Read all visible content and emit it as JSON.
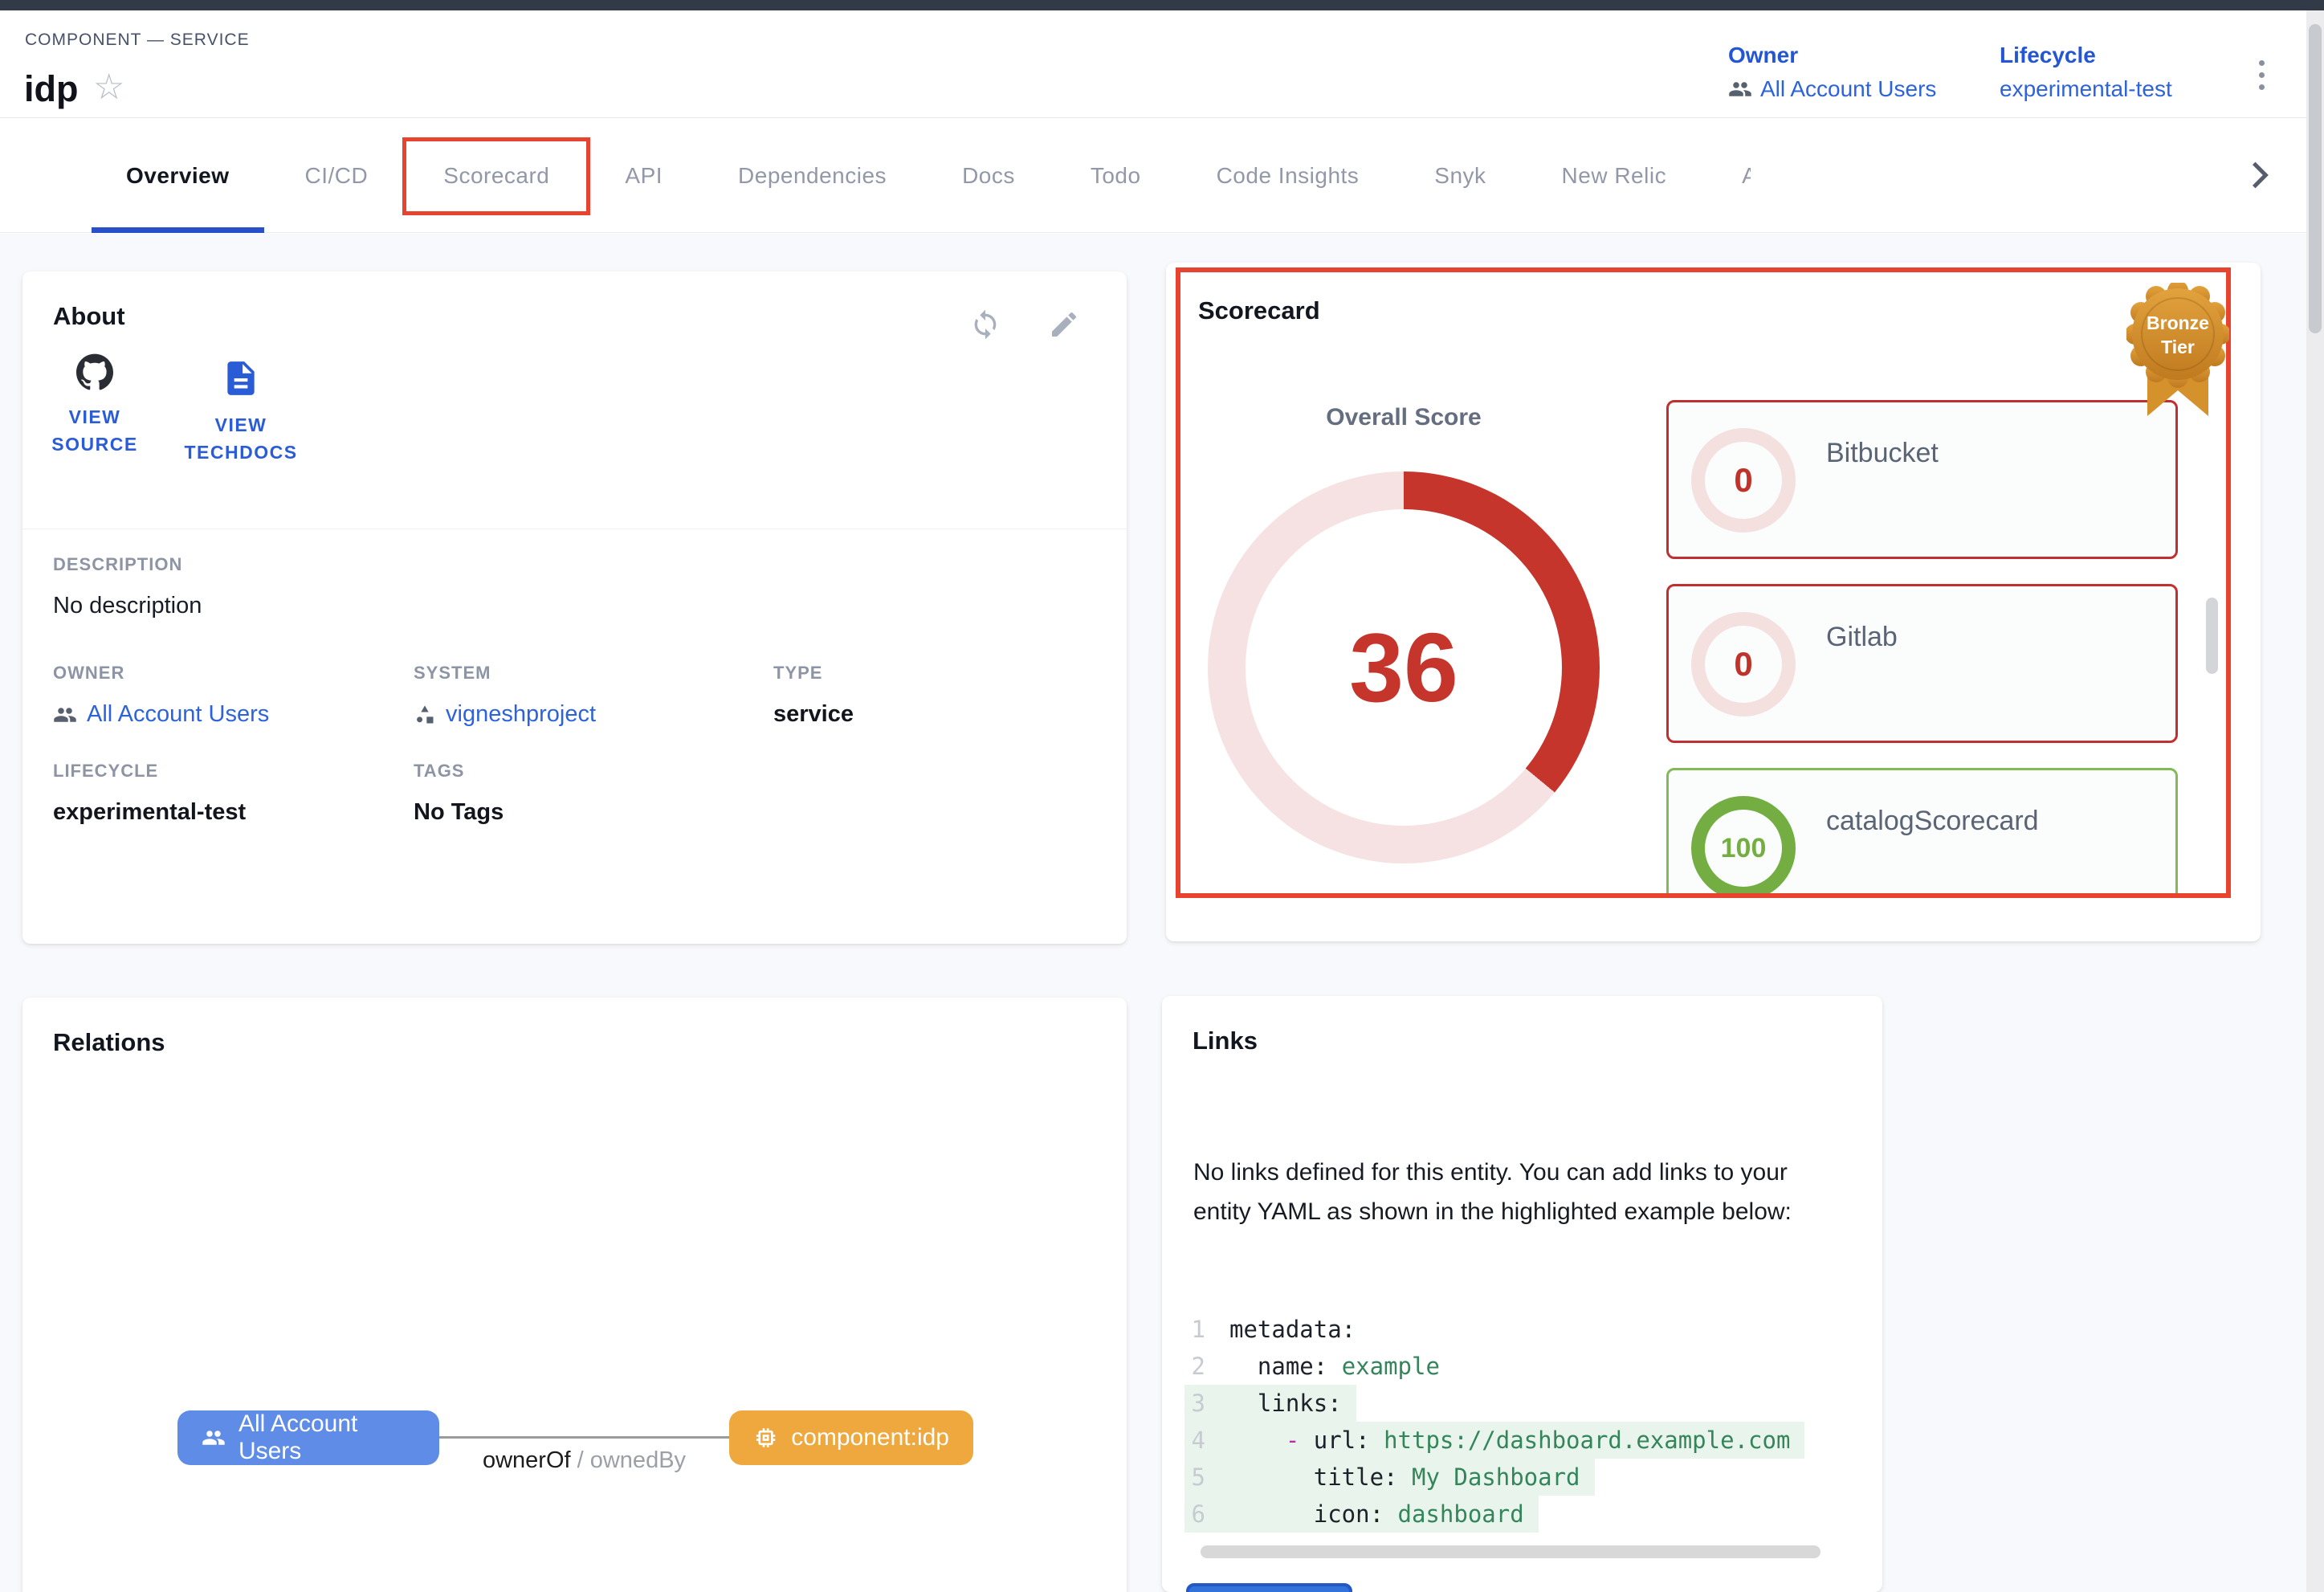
{
  "header": {
    "breadcrumb": "COMPONENT — SERVICE",
    "title": "idp",
    "meta": {
      "owner_label": "Owner",
      "owner_value": "All Account Users",
      "lifecycle_label": "Lifecycle",
      "lifecycle_value": "experimental-test"
    }
  },
  "tabs": {
    "items": [
      {
        "label": "Overview",
        "active": true
      },
      {
        "label": "CI/CD"
      },
      {
        "label": "Scorecard",
        "boxed": true
      },
      {
        "label": "API"
      },
      {
        "label": "Dependencies"
      },
      {
        "label": "Docs"
      },
      {
        "label": "Todo"
      },
      {
        "label": "Code Insights"
      },
      {
        "label": "Snyk"
      },
      {
        "label": "New Relic"
      },
      {
        "label": "AD",
        "truncated": true
      }
    ]
  },
  "about": {
    "title": "About",
    "links": [
      {
        "icon": "github-icon",
        "label_lines": [
          "VIEW",
          "SOURCE"
        ]
      },
      {
        "icon": "techdocs-icon",
        "label_lines": [
          "VIEW",
          "TECHDOCS"
        ]
      }
    ],
    "fields": {
      "description": {
        "label": "DESCRIPTION",
        "value": "No description"
      },
      "owner": {
        "label": "OWNER",
        "value": "All Account Users"
      },
      "system": {
        "label": "SYSTEM",
        "value": "vigneshproject"
      },
      "type": {
        "label": "TYPE",
        "value": "service"
      },
      "lifecycle": {
        "label": "LIFECYCLE",
        "value": "experimental-test"
      },
      "tags": {
        "label": "TAGS",
        "value": "No Tags"
      }
    }
  },
  "scorecard": {
    "title": "Scorecard",
    "badge": {
      "line1": "Bronze",
      "line2": "Tier"
    },
    "overall_label": "Overall Score",
    "overall_score": 36,
    "scores": [
      {
        "name": "Bitbucket",
        "value": 0,
        "status": "fail"
      },
      {
        "name": "Gitlab",
        "value": 0,
        "status": "fail"
      },
      {
        "name": "catalogScorecard",
        "value": 100,
        "status": "pass"
      }
    ]
  },
  "relations": {
    "title": "Relations",
    "nodes": [
      {
        "label": "All Account Users",
        "type": "owner"
      },
      {
        "label": "component:idp",
        "type": "component"
      }
    ],
    "edge": {
      "forward": "ownerOf",
      "separator": " / ",
      "reverse": "ownedBy"
    }
  },
  "links_card": {
    "title": "Links",
    "empty_text": "No links defined for this entity. You can add links to your entity YAML as shown in the highlighted example below:",
    "code": [
      {
        "num": "1",
        "highlighted": false,
        "segments": [
          {
            "t": "metadata:",
            "c": "key"
          }
        ]
      },
      {
        "num": "2",
        "highlighted": false,
        "segments": [
          {
            "t": "  name: ",
            "c": "key"
          },
          {
            "t": "example",
            "c": "str"
          }
        ]
      },
      {
        "num": "3",
        "highlighted": true,
        "segments": [
          {
            "t": "  links:",
            "c": "key"
          }
        ]
      },
      {
        "num": "4",
        "highlighted": true,
        "segments": [
          {
            "t": "    ",
            "c": "key"
          },
          {
            "t": "- ",
            "c": "punct"
          },
          {
            "t": "url: ",
            "c": "key"
          },
          {
            "t": "https://dashboard.example.com",
            "c": "str"
          }
        ]
      },
      {
        "num": "5",
        "highlighted": true,
        "segments": [
          {
            "t": "      title: ",
            "c": "key"
          },
          {
            "t": "My Dashboard",
            "c": "str"
          }
        ]
      },
      {
        "num": "6",
        "highlighted": true,
        "segments": [
          {
            "t": "      icon: ",
            "c": "key"
          },
          {
            "t": "dashboard",
            "c": "str"
          }
        ]
      }
    ]
  },
  "colors": {
    "accent_blue": "#2850c9",
    "link_blue": "#2d63da",
    "highlight_red": "#e8432e",
    "fail_red": "#c0332b",
    "score_arc_red": "#c5352c",
    "score_track_pink": "#f6e2e2",
    "pass_green": "#74ae43",
    "bronze": "#cd8a2e",
    "node_blue": "#5e8ce6",
    "node_orange": "#eea83e",
    "code_highlight_bg": "#e9f5ec"
  }
}
